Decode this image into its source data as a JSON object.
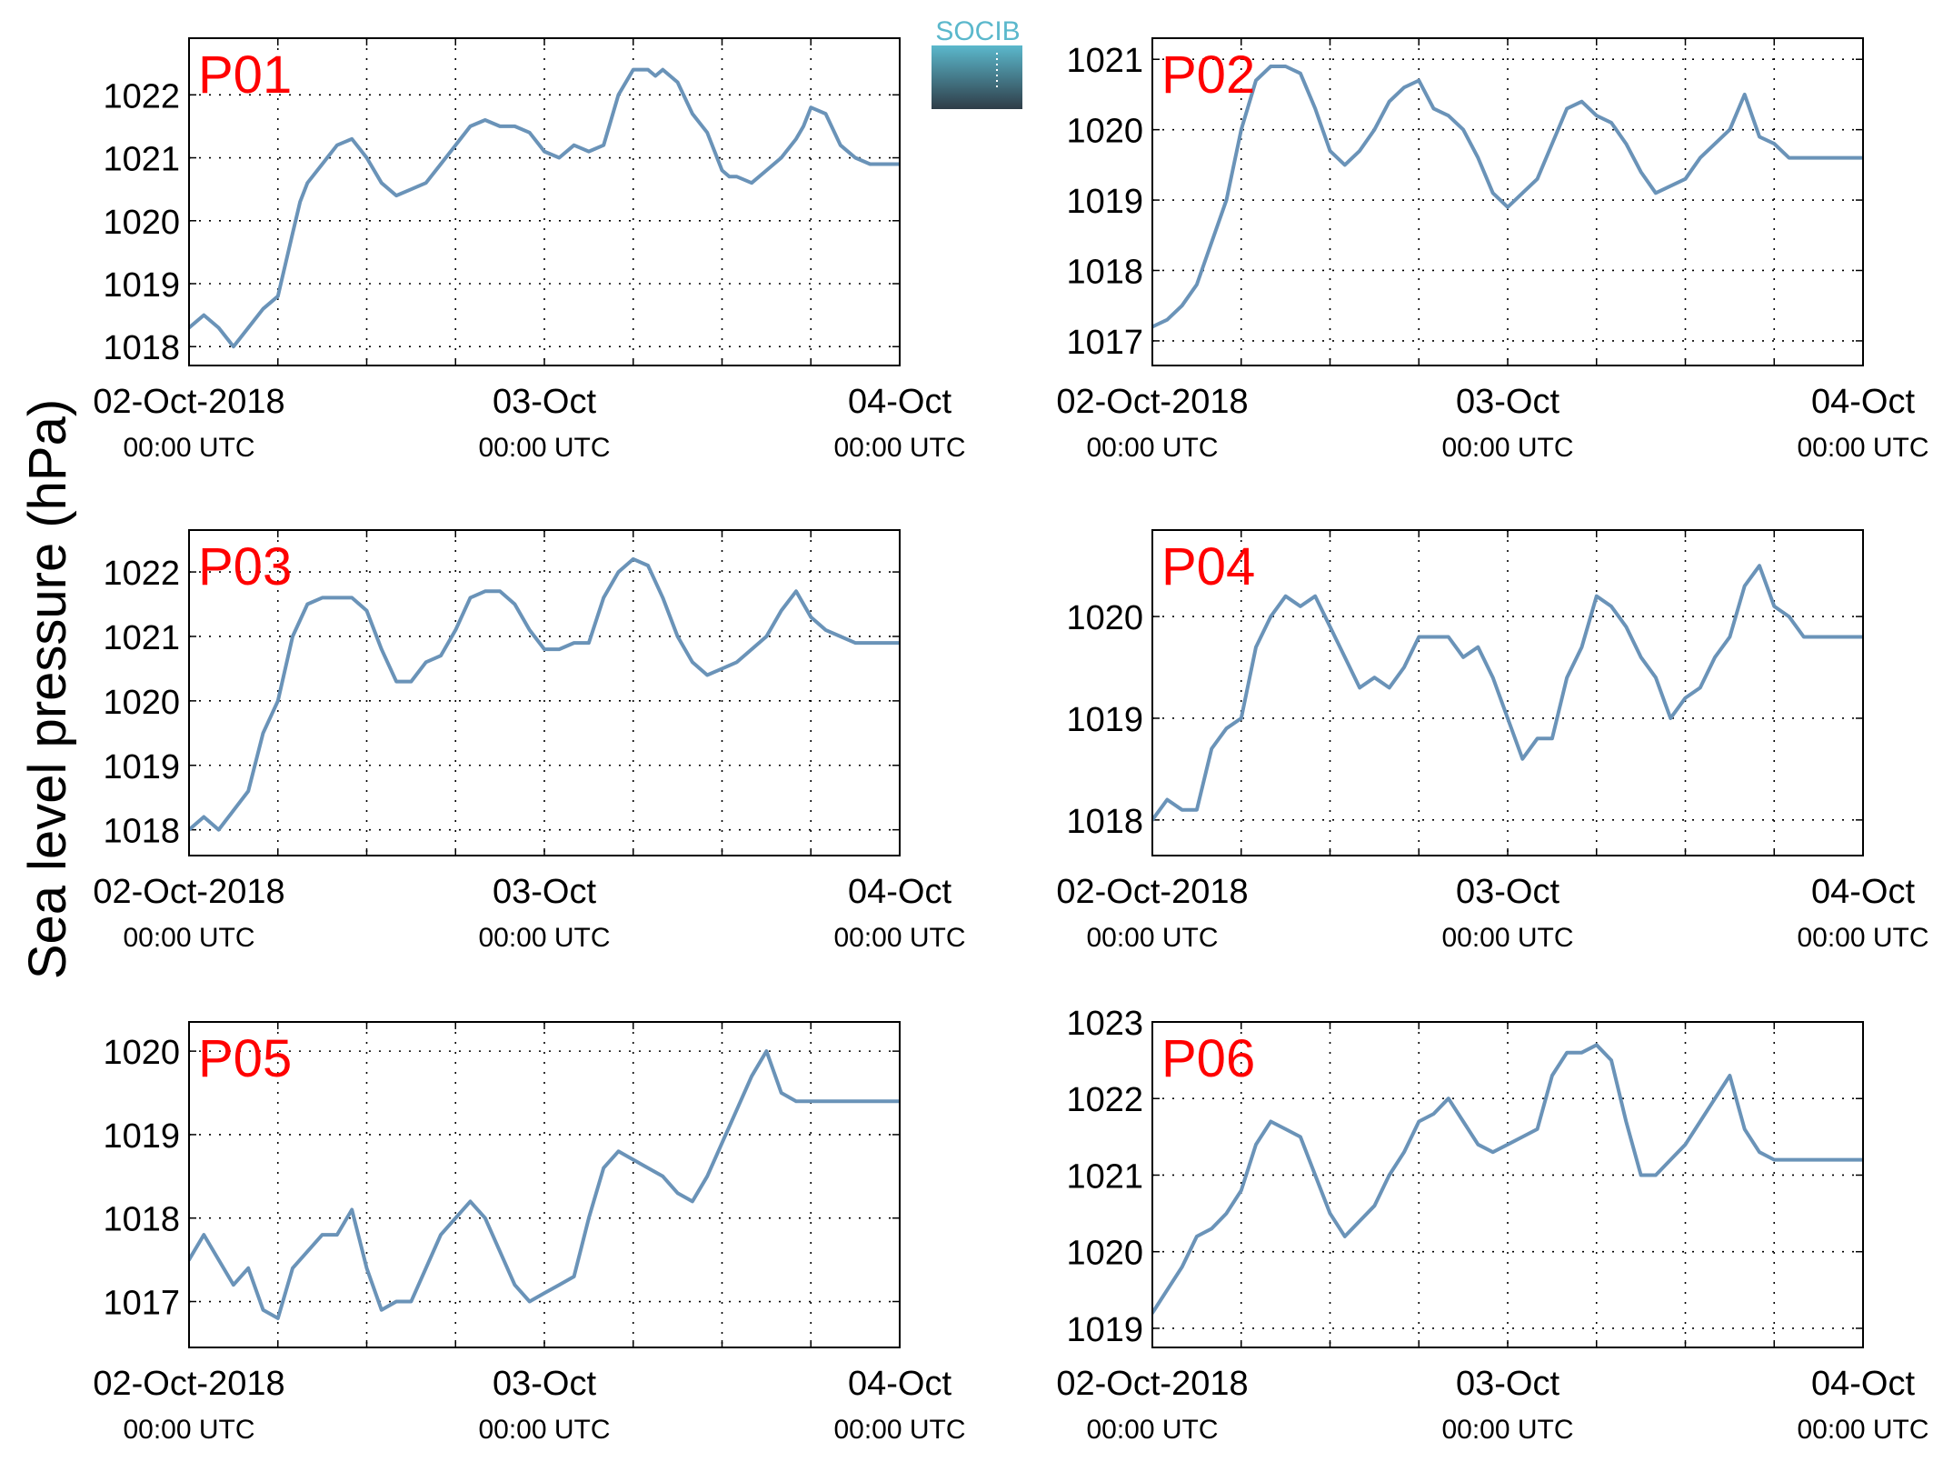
{
  "figure": {
    "ylabel": "Sea level pressure (hPa)",
    "logo": {
      "text": "SOCIB",
      "colors": {
        "top": "#5bb8cc",
        "bottom": "#2f3d48",
        "text": "#5bb8cc"
      }
    },
    "colors": {
      "series_line": "#6a93b8",
      "panel_label": "#ff0000",
      "axis": "#000000",
      "grid": "#000000"
    }
  },
  "chart_data": [
    {
      "type": "line",
      "title": "P01",
      "x_unit": "hours since 02-Oct-2018 00:00 UTC",
      "xlim": [
        0,
        48
      ],
      "xticks": [
        0,
        6,
        12,
        18,
        24,
        30,
        36,
        42,
        48
      ],
      "xtick_labels": [
        {
          "x": 0,
          "line1": "02-Oct-2018",
          "line2": "00:00 UTC"
        },
        {
          "x": 24,
          "line1": "03-Oct",
          "line2": "00:00 UTC"
        },
        {
          "x": 48,
          "line1": "04-Oct",
          "line2": "00:00 UTC"
        }
      ],
      "ylim": [
        1017.7,
        1022.9
      ],
      "yticks": [
        1018,
        1019,
        1020,
        1021,
        1022
      ],
      "grid": true,
      "series": [
        {
          "x": [
            0,
            1,
            2,
            3,
            4,
            5,
            6,
            7,
            7.5,
            8,
            9,
            10,
            11,
            12,
            13,
            14,
            15,
            16,
            17,
            18,
            19,
            20,
            21,
            22,
            23,
            24,
            25,
            26,
            27,
            28,
            29,
            30,
            31,
            31.5,
            32,
            33,
            34,
            35,
            36,
            36.5,
            37,
            38,
            39,
            40,
            41,
            41.5,
            42,
            43,
            44,
            45,
            46,
            47,
            48
          ],
          "y": [
            1018.3,
            1018.5,
            1018.3,
            1018.0,
            1018.3,
            1018.6,
            1018.8,
            1019.8,
            1020.3,
            1020.6,
            1020.9,
            1021.2,
            1021.3,
            1021.0,
            1020.6,
            1020.4,
            1020.5,
            1020.6,
            1020.9,
            1021.2,
            1021.5,
            1021.6,
            1021.5,
            1021.5,
            1021.4,
            1021.1,
            1021.0,
            1021.2,
            1021.1,
            1021.2,
            1022.0,
            1022.4,
            1022.4,
            1022.3,
            1022.4,
            1022.2,
            1021.7,
            1021.4,
            1020.8,
            1020.7,
            1020.7,
            1020.6,
            1020.8,
            1021.0,
            1021.3,
            1021.5,
            1021.8,
            1021.7,
            1021.2,
            1021.0,
            1020.9,
            1020.9,
            1020.9
          ]
        }
      ]
    },
    {
      "type": "line",
      "title": "P02",
      "x_unit": "hours since 02-Oct-2018 00:00 UTC",
      "xlim": [
        0,
        48
      ],
      "xticks": [
        0,
        6,
        12,
        18,
        24,
        30,
        36,
        42,
        48
      ],
      "xtick_labels": [
        {
          "x": 0,
          "line1": "02-Oct-2018",
          "line2": "00:00 UTC"
        },
        {
          "x": 24,
          "line1": "03-Oct",
          "line2": "00:00 UTC"
        },
        {
          "x": 48,
          "line1": "04-Oct",
          "line2": "00:00 UTC"
        }
      ],
      "ylim": [
        1016.65,
        1021.3
      ],
      "yticks": [
        1017,
        1018,
        1019,
        1020,
        1021
      ],
      "grid": true,
      "series": [
        {
          "x": [
            0,
            1,
            2,
            3,
            4,
            5,
            6,
            7,
            8,
            9,
            10,
            11,
            12,
            13,
            14,
            15,
            16,
            17,
            18,
            19,
            20,
            21,
            22,
            23,
            24,
            25,
            26,
            27,
            28,
            29,
            30,
            31,
            32,
            33,
            34,
            35,
            36,
            37,
            38,
            39,
            40,
            41,
            42,
            43,
            44,
            45,
            46,
            47,
            48
          ],
          "y": [
            1017.2,
            1017.3,
            1017.5,
            1017.8,
            1018.4,
            1019.0,
            1020.0,
            1020.7,
            1020.9,
            1020.9,
            1020.8,
            1020.3,
            1019.7,
            1019.5,
            1019.7,
            1020.0,
            1020.4,
            1020.6,
            1020.7,
            1020.3,
            1020.2,
            1020.0,
            1019.6,
            1019.1,
            1018.9,
            1019.1,
            1019.3,
            1019.8,
            1020.3,
            1020.4,
            1020.2,
            1020.1,
            1019.8,
            1019.4,
            1019.1,
            1019.2,
            1019.3,
            1019.6,
            1019.8,
            1020.0,
            1020.5,
            1019.9,
            1019.8,
            1019.6,
            1019.6,
            1019.6,
            1019.6,
            1019.6,
            1019.6
          ]
        }
      ]
    },
    {
      "type": "line",
      "title": "P03",
      "x_unit": "hours since 02-Oct-2018 00:00 UTC",
      "xlim": [
        0,
        48
      ],
      "xticks": [
        0,
        6,
        12,
        18,
        24,
        30,
        36,
        42,
        48
      ],
      "xtick_labels": [
        {
          "x": 0,
          "line1": "02-Oct-2018",
          "line2": "00:00 UTC"
        },
        {
          "x": 24,
          "line1": "03-Oct",
          "line2": "00:00 UTC"
        },
        {
          "x": 48,
          "line1": "04-Oct",
          "line2": "00:00 UTC"
        }
      ],
      "ylim": [
        1017.6,
        1022.65
      ],
      "yticks": [
        1018,
        1019,
        1020,
        1021,
        1022
      ],
      "grid": true,
      "series": [
        {
          "x": [
            0,
            1,
            2,
            3,
            4,
            5,
            6,
            7,
            8,
            9,
            10,
            11,
            12,
            13,
            14,
            15,
            16,
            17,
            18,
            19,
            20,
            21,
            22,
            23,
            24,
            25,
            26,
            27,
            28,
            29,
            30,
            31,
            32,
            33,
            34,
            35,
            36,
            37,
            38,
            39,
            40,
            41,
            42,
            43,
            44,
            45,
            46,
            47,
            48
          ],
          "y": [
            1018.0,
            1018.2,
            1018.0,
            1018.3,
            1018.6,
            1019.5,
            1020.0,
            1021.0,
            1021.5,
            1021.6,
            1021.6,
            1021.6,
            1021.4,
            1020.8,
            1020.3,
            1020.3,
            1020.6,
            1020.7,
            1021.1,
            1021.6,
            1021.7,
            1021.7,
            1021.5,
            1021.1,
            1020.8,
            1020.8,
            1020.9,
            1020.9,
            1021.6,
            1022.0,
            1022.2,
            1022.1,
            1021.6,
            1021.0,
            1020.6,
            1020.4,
            1020.5,
            1020.6,
            1020.8,
            1021.0,
            1021.4,
            1021.7,
            1021.3,
            1021.1,
            1021.0,
            1020.9,
            1020.9,
            1020.9,
            1020.9
          ]
        }
      ]
    },
    {
      "type": "line",
      "title": "P04",
      "x_unit": "hours since 02-Oct-2018 00:00 UTC",
      "xlim": [
        0,
        48
      ],
      "xticks": [
        0,
        6,
        12,
        18,
        24,
        30,
        36,
        42,
        48
      ],
      "xtick_labels": [
        {
          "x": 0,
          "line1": "02-Oct-2018",
          "line2": "00:00 UTC"
        },
        {
          "x": 24,
          "line1": "03-Oct",
          "line2": "00:00 UTC"
        },
        {
          "x": 48,
          "line1": "04-Oct",
          "line2": "00:00 UTC"
        }
      ],
      "ylim": [
        1017.65,
        1020.85
      ],
      "yticks": [
        1018,
        1019,
        1020
      ],
      "grid": true,
      "series": [
        {
          "x": [
            0,
            1,
            2,
            3,
            4,
            5,
            6,
            7,
            8,
            9,
            10,
            11,
            12,
            13,
            14,
            15,
            16,
            17,
            18,
            19,
            20,
            21,
            22,
            23,
            24,
            25,
            26,
            27,
            28,
            29,
            30,
            31,
            32,
            33,
            34,
            35,
            36,
            37,
            38,
            39,
            40,
            41,
            42,
            43,
            44,
            45,
            46,
            47,
            48
          ],
          "y": [
            1018.0,
            1018.2,
            1018.1,
            1018.1,
            1018.7,
            1018.9,
            1019.0,
            1019.7,
            1020.0,
            1020.2,
            1020.1,
            1020.2,
            1019.9,
            1019.6,
            1019.3,
            1019.4,
            1019.3,
            1019.5,
            1019.8,
            1019.8,
            1019.8,
            1019.6,
            1019.7,
            1019.4,
            1019.0,
            1018.6,
            1018.8,
            1018.8,
            1019.4,
            1019.7,
            1020.2,
            1020.1,
            1019.9,
            1019.6,
            1019.4,
            1019.0,
            1019.2,
            1019.3,
            1019.6,
            1019.8,
            1020.3,
            1020.5,
            1020.1,
            1020.0,
            1019.8,
            1019.8,
            1019.8,
            1019.8,
            1019.8
          ]
        }
      ]
    },
    {
      "type": "line",
      "title": "P05",
      "x_unit": "hours since 02-Oct-2018 00:00 UTC",
      "xlim": [
        0,
        48
      ],
      "xticks": [
        0,
        6,
        12,
        18,
        24,
        30,
        36,
        42,
        48
      ],
      "xtick_labels": [
        {
          "x": 0,
          "line1": "02-Oct-2018",
          "line2": "00:00 UTC"
        },
        {
          "x": 24,
          "line1": "03-Oct",
          "line2": "00:00 UTC"
        },
        {
          "x": 48,
          "line1": "04-Oct",
          "line2": "00:00 UTC"
        }
      ],
      "ylim": [
        1016.45,
        1020.35
      ],
      "yticks": [
        1017,
        1018,
        1019,
        1020
      ],
      "grid": true,
      "series": [
        {
          "x": [
            0,
            1,
            2,
            3,
            4,
            5,
            6,
            7,
            8,
            9,
            10,
            11,
            12,
            13,
            14,
            15,
            16,
            17,
            18,
            19,
            20,
            21,
            22,
            23,
            24,
            25,
            26,
            27,
            28,
            29,
            30,
            31,
            32,
            33,
            34,
            35,
            36,
            37,
            38,
            39,
            40,
            41,
            42,
            43,
            44,
            45,
            46,
            47,
            48
          ],
          "y": [
            1017.5,
            1017.8,
            1017.5,
            1017.2,
            1017.4,
            1016.9,
            1016.8,
            1017.4,
            1017.6,
            1017.8,
            1017.8,
            1018.1,
            1017.4,
            1016.9,
            1017.0,
            1017.0,
            1017.4,
            1017.8,
            1018.0,
            1018.2,
            1018.0,
            1017.6,
            1017.2,
            1017.0,
            1017.1,
            1017.2,
            1017.3,
            1018.0,
            1018.6,
            1018.8,
            1018.7,
            1018.6,
            1018.5,
            1018.3,
            1018.2,
            1018.5,
            1018.9,
            1019.3,
            1019.7,
            1020.0,
            1019.5,
            1019.4,
            1019.4,
            1019.4,
            1019.4,
            1019.4,
            1019.4,
            1019.4,
            1019.4
          ]
        }
      ]
    },
    {
      "type": "line",
      "title": "P06",
      "x_unit": "hours since 02-Oct-2018 00:00 UTC",
      "xlim": [
        0,
        48
      ],
      "xticks": [
        0,
        6,
        12,
        18,
        24,
        30,
        36,
        42,
        48
      ],
      "xtick_labels": [
        {
          "x": 0,
          "line1": "02-Oct-2018",
          "line2": "00:00 UTC"
        },
        {
          "x": 24,
          "line1": "03-Oct",
          "line2": "00:00 UTC"
        },
        {
          "x": 48,
          "line1": "04-Oct",
          "line2": "00:00 UTC"
        }
      ],
      "ylim": [
        1018.75,
        1023.0
      ],
      "yticks": [
        1019,
        1020,
        1021,
        1022,
        1023
      ],
      "grid": true,
      "series": [
        {
          "x": [
            0,
            1,
            2,
            3,
            4,
            5,
            6,
            7,
            8,
            9,
            10,
            11,
            12,
            13,
            14,
            15,
            16,
            17,
            18,
            19,
            20,
            21,
            22,
            23,
            24,
            25,
            26,
            27,
            28,
            29,
            30,
            31,
            32,
            33,
            34,
            35,
            36,
            37,
            38,
            39,
            40,
            41,
            42,
            43,
            44,
            45,
            46,
            47,
            48
          ],
          "y": [
            1019.2,
            1019.5,
            1019.8,
            1020.2,
            1020.3,
            1020.5,
            1020.8,
            1021.4,
            1021.7,
            1021.6,
            1021.5,
            1021.0,
            1020.5,
            1020.2,
            1020.4,
            1020.6,
            1021.0,
            1021.3,
            1021.7,
            1021.8,
            1022.0,
            1021.7,
            1021.4,
            1021.3,
            1021.4,
            1021.5,
            1021.6,
            1022.3,
            1022.6,
            1022.6,
            1022.7,
            1022.5,
            1021.7,
            1021.0,
            1021.0,
            1021.2,
            1021.4,
            1021.7,
            1022.0,
            1022.3,
            1021.6,
            1021.3,
            1021.2,
            1021.2,
            1021.2,
            1021.2,
            1021.2,
            1021.2,
            1021.2
          ]
        }
      ]
    }
  ]
}
